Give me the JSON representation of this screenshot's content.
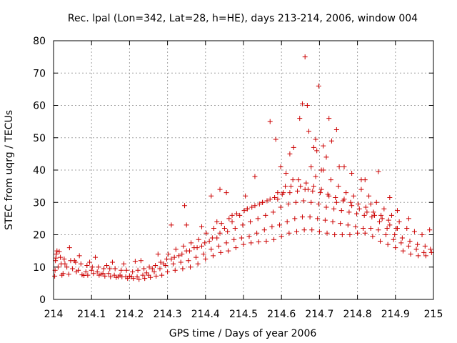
{
  "chart_data": {
    "type": "scatter",
    "title": "Rec. lpal (Lon=342, Lat=28, h=HE), days 213-214, 2006, window 004",
    "xlabel": "GPS time / Days of year 2006",
    "ylabel": "STEC from uqrg / TECUs",
    "xlim": [
      214,
      215
    ],
    "ylim": [
      0,
      80
    ],
    "xticks": [
      "214",
      "214.1",
      "214.2",
      "214.3",
      "214.4",
      "214.5",
      "214.6",
      "214.7",
      "214.8",
      "214.9",
      "215"
    ],
    "yticks": [
      "0",
      "10",
      "20",
      "30",
      "40",
      "50",
      "60",
      "70",
      "80"
    ],
    "grid": true,
    "marker": "+",
    "color": "#cc0000",
    "series": [
      {
        "x": [
          214.003,
          214.006,
          214.009,
          214.015,
          214.022,
          214.03,
          214.042,
          214.055,
          214.068,
          214.08,
          214.095,
          214.11,
          214.125,
          214.14,
          214.155,
          214.17,
          214.185,
          214.2,
          214.215,
          214.23,
          214.245,
          214.26,
          214.275,
          214.29,
          214.31,
          214.33,
          214.35,
          214.37,
          214.39,
          214.41,
          214.43,
          214.45,
          214.47,
          214.49,
          214.51,
          214.53,
          214.55,
          214.57,
          214.59,
          214.61,
          214.63,
          214.65,
          214.67,
          214.69,
          214.71,
          214.73,
          214.75,
          214.77,
          214.79,
          214.81,
          214.83,
          214.85,
          214.87,
          214.89,
          214.91,
          214.93,
          214.95,
          214.97,
          214.99,
          214.004,
          214.012,
          214.025,
          214.04,
          214.06,
          214.075,
          214.09,
          214.105,
          214.12,
          214.135,
          214.15,
          214.165,
          214.18,
          214.195,
          214.21,
          214.225,
          214.24,
          214.255,
          214.27,
          214.285,
          214.3,
          214.32,
          214.34,
          214.36,
          214.38,
          214.4,
          214.42,
          214.44,
          214.46,
          214.48,
          214.5,
          214.52,
          214.54,
          214.56,
          214.58,
          214.6,
          214.62,
          214.64,
          214.66,
          214.68,
          214.7,
          214.72,
          214.74,
          214.76,
          214.78,
          214.8,
          214.82,
          214.84,
          214.86,
          214.88,
          214.9,
          214.92,
          214.94,
          214.96,
          214.98,
          214.005,
          214.02,
          214.035,
          214.05,
          214.065,
          214.085,
          214.1,
          214.115,
          214.13,
          214.145,
          214.16,
          214.175,
          214.19,
          214.205,
          214.22,
          214.235,
          214.25,
          214.265,
          214.28,
          214.295,
          214.315,
          214.335,
          214.355,
          214.375,
          214.395,
          214.415,
          214.435,
          214.455,
          214.475,
          214.495,
          214.515,
          214.535,
          214.555,
          214.575,
          214.595,
          214.615,
          214.635,
          214.655,
          214.675,
          214.695,
          214.715,
          214.735,
          214.755,
          214.775,
          214.795,
          214.815,
          214.835,
          214.855,
          214.875,
          214.895,
          214.915,
          214.935,
          214.955,
          214.975,
          214.995,
          214.007,
          214.018,
          214.028,
          214.045,
          214.058,
          214.072,
          214.088,
          214.102,
          214.118,
          214.132,
          214.148,
          214.162,
          214.178,
          214.192,
          214.208,
          214.222,
          214.238,
          214.252,
          214.268,
          214.282,
          214.298,
          214.318,
          214.338,
          214.358,
          214.378,
          214.398,
          214.418,
          214.438,
          214.458,
          214.478,
          214.498,
          214.518,
          214.538,
          214.558,
          214.578,
          214.598,
          214.618,
          214.638,
          214.658,
          214.678,
          214.698,
          214.718,
          214.738,
          214.758,
          214.778,
          214.798,
          214.818,
          214.838,
          214.858,
          214.878,
          214.898,
          214.918,
          214.938,
          214.958,
          214.978,
          214.992,
          214.302,
          214.322,
          214.342,
          214.362,
          214.382,
          214.402,
          214.422,
          214.442,
          214.462,
          214.482,
          214.502,
          214.522,
          214.542,
          214.562,
          214.582,
          214.602,
          214.622,
          214.642,
          214.662,
          214.682,
          214.702,
          214.722,
          214.742,
          214.762,
          214.782,
          214.802,
          214.822,
          214.842,
          214.862,
          214.882,
          214.902,
          214.345,
          214.415,
          214.438,
          214.455,
          214.505,
          214.53,
          214.57,
          214.585,
          214.598,
          214.612,
          214.622,
          214.632,
          214.648,
          214.655,
          214.662,
          214.668,
          214.672,
          214.678,
          214.685,
          214.69,
          214.693,
          214.698,
          214.705,
          214.71,
          214.718,
          214.725,
          214.732,
          214.745,
          214.752,
          214.765,
          214.785,
          214.81,
          214.82,
          214.835,
          214.855,
          214.885,
          214.905,
          214.935,
          214.31,
          214.35,
          214.39,
          214.43,
          214.47,
          214.51,
          214.55,
          214.59,
          214.605,
          214.625,
          214.645,
          214.665,
          214.685,
          214.705,
          214.725,
          214.745,
          214.765,
          214.785,
          214.805,
          214.825,
          214.845,
          214.865,
          214.885,
          214.905
        ],
        "y": [
          7.2,
          12.8,
          15.0,
          14.8,
          7.5,
          11.0,
          16.0,
          12.0,
          13.5,
          7.4,
          11.5,
          13.0,
          7.8,
          10.5,
          11.5,
          7.0,
          11.0,
          7.2,
          11.8,
          12.0,
          8.2,
          9.5,
          14.0,
          11.0,
          12.5,
          13.5,
          15.0,
          16.0,
          16.5,
          18.0,
          19.0,
          22.0,
          24.0,
          26.0,
          28.0,
          29.0,
          30.0,
          31.0,
          33.0,
          35.0,
          37.0,
          35.0,
          34.0,
          38.0,
          40.0,
          37.0,
          35.0,
          33.0,
          32.0,
          34.0,
          32.0,
          30.0,
          28.0,
          26.0,
          24.0,
          22.0,
          21.0,
          20.0,
          21.5,
          9.0,
          10.0,
          8.0,
          7.8,
          8.5,
          7.6,
          7.5,
          8.0,
          7.5,
          7.2,
          7.0,
          6.8,
          7.0,
          6.5,
          6.5,
          6.2,
          6.5,
          6.8,
          7.2,
          7.5,
          8.5,
          9.0,
          9.5,
          10.0,
          11.0,
          12.5,
          13.5,
          14.5,
          15.0,
          16.0,
          17.0,
          17.5,
          17.8,
          18.0,
          18.5,
          19.5,
          20.5,
          21.0,
          21.5,
          21.5,
          21.0,
          20.5,
          20.0,
          20.0,
          20.0,
          20.5,
          20.5,
          19.5,
          18.0,
          17.0,
          16.0,
          15.0,
          14.0,
          13.5,
          13.5,
          12.0,
          11.0,
          10.0,
          9.5,
          9.0,
          8.5,
          9.0,
          8.5,
          8.0,
          8.0,
          7.5,
          7.5,
          7.0,
          7.0,
          7.0,
          7.5,
          7.5,
          8.5,
          9.5,
          10.5,
          11.0,
          11.5,
          12.0,
          13.0,
          14.0,
          15.5,
          16.5,
          17.5,
          18.5,
          19.0,
          19.5,
          20.5,
          21.5,
          22.5,
          23.0,
          24.0,
          25.0,
          25.5,
          25.5,
          25.0,
          24.5,
          24.0,
          23.5,
          23.0,
          22.5,
          22.0,
          22.0,
          21.5,
          20.0,
          18.5,
          17.5,
          16.5,
          15.5,
          14.5,
          14.5,
          14.0,
          13.0,
          12.5,
          12.0,
          11.5,
          11.0,
          10.5,
          10.0,
          10.0,
          9.5,
          9.5,
          9.5,
          9.0,
          9.0,
          8.5,
          9.0,
          9.5,
          10.0,
          10.5,
          11.5,
          12.5,
          13.0,
          14.0,
          15.0,
          16.0,
          17.5,
          19.0,
          20.5,
          21.0,
          22.0,
          23.0,
          24.0,
          25.0,
          26.0,
          27.0,
          28.5,
          29.5,
          30.0,
          30.5,
          30.0,
          29.5,
          28.5,
          28.0,
          27.5,
          27.0,
          26.5,
          26.0,
          25.5,
          24.0,
          22.0,
          20.0,
          19.0,
          18.0,
          17.0,
          16.5,
          15.5,
          14.0,
          15.5,
          16.5,
          17.5,
          18.5,
          20.5,
          22.0,
          23.5,
          25.0,
          26.5,
          27.5,
          28.5,
          29.5,
          30.5,
          31.5,
          32.5,
          33.0,
          33.5,
          34.0,
          33.5,
          33.0,
          32.5,
          31.5,
          30.5,
          30.0,
          29.5,
          28.5,
          27.0,
          26.0,
          24.5,
          22.0,
          29.0,
          32.0,
          34.0,
          33.0,
          32.0,
          38.0,
          55.0,
          49.5,
          41.0,
          39.0,
          45.0,
          47.0,
          56.0,
          60.5,
          75.0,
          60.0,
          52.0,
          41.0,
          47.0,
          49.5,
          46.0,
          66.0,
          40.0,
          47.5,
          44.0,
          56.0,
          49.0,
          52.5,
          41.0,
          41.0,
          39.0,
          37.0,
          37.0,
          29.5,
          39.5,
          31.5,
          27.5,
          25.0,
          23.0,
          23.0,
          22.5,
          24.0,
          26.0,
          28.0,
          30.0,
          31.0,
          33.0,
          35.0,
          37.0,
          36.0,
          35.0,
          34.0,
          32.0,
          30.0,
          31.0,
          29.0,
          28.0,
          27.0,
          26.0,
          25.0,
          23.0,
          22.0
        ]
      }
    ]
  }
}
